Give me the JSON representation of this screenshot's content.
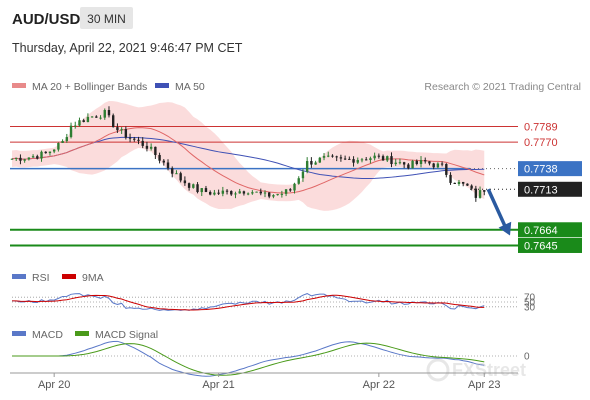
{
  "header": {
    "pair": "AUD/USD",
    "timeframe": "30 MIN",
    "datetime": "Thursday, April 22, 2021 9:46:47 PM CET"
  },
  "legend": {
    "ma20_bb": "MA 20 + Bollinger Bands",
    "ma50": "MA 50",
    "credit": "Research © 2021 Trading Central"
  },
  "rsi_legend": {
    "rsi": "RSI",
    "ma9": "9MA"
  },
  "macd_legend": {
    "macd": "MACD",
    "signal": "MACD Signal"
  },
  "watermark": "FXStreet",
  "colors": {
    "up": "#2e7d32",
    "down": "#222222",
    "ma20": "#e06666",
    "bollinger_fill": "#f9d0d0",
    "ma50": "#3f51b5",
    "resistance": "#cc3333",
    "support": "#1a8a1a",
    "pivot": "#3b73c4",
    "arrow": "#2a5aa0",
    "rsi": "#5a78c8",
    "rsi_ma": "#cc0000",
    "macd": "#5a78c8",
    "macd_signal": "#4a9a1a"
  },
  "chart_data": [
    {
      "type": "candlestick",
      "title": "AUD/USD",
      "x_tick_labels": [
        "Apr 20",
        "Apr 21",
        "Apr 22",
        "Apr 23"
      ],
      "ylim": [
        0.7625,
        0.7815
      ],
      "levels": [
        {
          "value": 0.7789,
          "label": "0.7789",
          "kind": "resistance"
        },
        {
          "value": 0.777,
          "label": "0.7770",
          "kind": "resistance"
        },
        {
          "value": 0.7738,
          "label": "0.7738",
          "kind": "pivot"
        },
        {
          "value": 0.7713,
          "label": "0.7713",
          "kind": "current"
        },
        {
          "value": 0.7664,
          "label": "0.7664",
          "kind": "support"
        },
        {
          "value": 0.7645,
          "label": "0.7645",
          "kind": "support"
        }
      ],
      "close_path": [
        [
          0,
          0.775
        ],
        [
          4,
          0.7752
        ],
        [
          8,
          0.7756
        ],
        [
          12,
          0.777
        ],
        [
          14,
          0.779
        ],
        [
          18,
          0.78
        ],
        [
          22,
          0.7805
        ],
        [
          25,
          0.7785
        ],
        [
          28,
          0.7775
        ],
        [
          32,
          0.7765
        ],
        [
          36,
          0.7745
        ],
        [
          40,
          0.7725
        ],
        [
          44,
          0.7712
        ],
        [
          48,
          0.7708
        ],
        [
          52,
          0.771
        ],
        [
          56,
          0.7712
        ],
        [
          60,
          0.7705
        ],
        [
          64,
          0.7708
        ],
        [
          66,
          0.7712
        ],
        [
          70,
          0.7745
        ],
        [
          74,
          0.775
        ],
        [
          78,
          0.7748
        ],
        [
          82,
          0.775
        ],
        [
          86,
          0.7752
        ],
        [
          90,
          0.7748
        ],
        [
          94,
          0.7742
        ],
        [
          98,
          0.7746
        ],
        [
          102,
          0.774
        ],
        [
          104,
          0.7725
        ],
        [
          106,
          0.772
        ],
        [
          108,
          0.7716
        ],
        [
          110,
          0.7705
        ],
        [
          112,
          0.7713
        ]
      ],
      "forecast_arrow": {
        "from": [
          112,
          0.7713
        ],
        "to": [
          120,
          0.7657
        ]
      }
    },
    {
      "type": "line",
      "name_label": "RSI",
      "ref_levels": [
        70,
        50,
        30
      ],
      "ylim": [
        0,
        100
      ],
      "series": [
        {
          "name": "RSI",
          "key": "rsi"
        },
        {
          "name": "9MA",
          "key": "rsi_ma"
        }
      ]
    },
    {
      "type": "line",
      "name_label": "MACD",
      "ref_levels": [
        0
      ],
      "series": [
        {
          "name": "MACD",
          "key": "macd"
        },
        {
          "name": "MACD Signal",
          "key": "macd_signal"
        }
      ]
    }
  ]
}
